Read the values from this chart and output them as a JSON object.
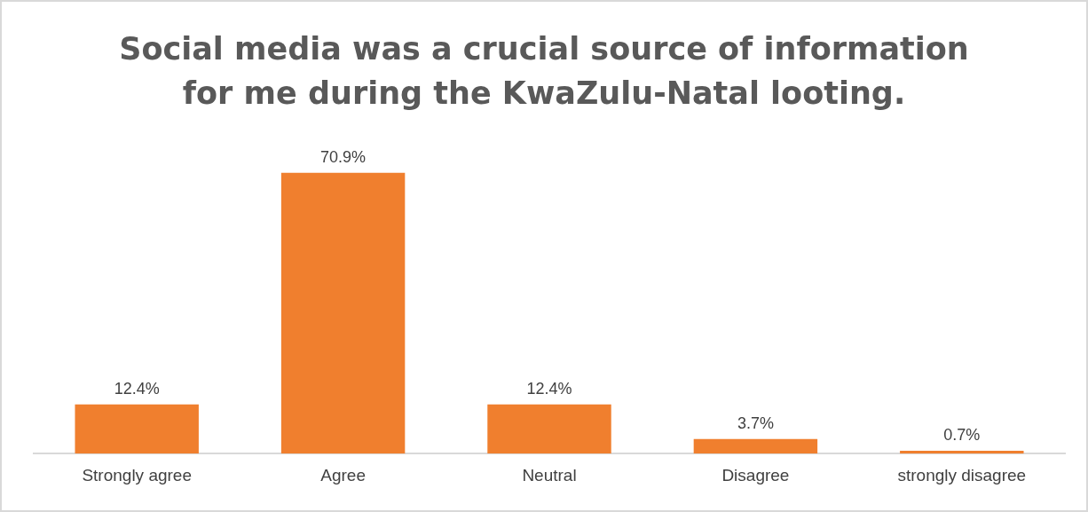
{
  "chart_data": {
    "type": "bar",
    "title": "Social media was a crucial source of information for me during the KwaZulu-Natal looting.",
    "categories": [
      "Strongly agree",
      "Agree",
      "Neutral",
      "Disagree",
      "strongly disagree"
    ],
    "values": [
      12.4,
      70.9,
      12.4,
      3.7,
      0.7
    ],
    "value_labels": [
      "12.4%",
      "70.9%",
      "12.4%",
      "3.7%",
      "0.7%"
    ],
    "color": "#f07f2e",
    "legend": false,
    "grid": false
  }
}
